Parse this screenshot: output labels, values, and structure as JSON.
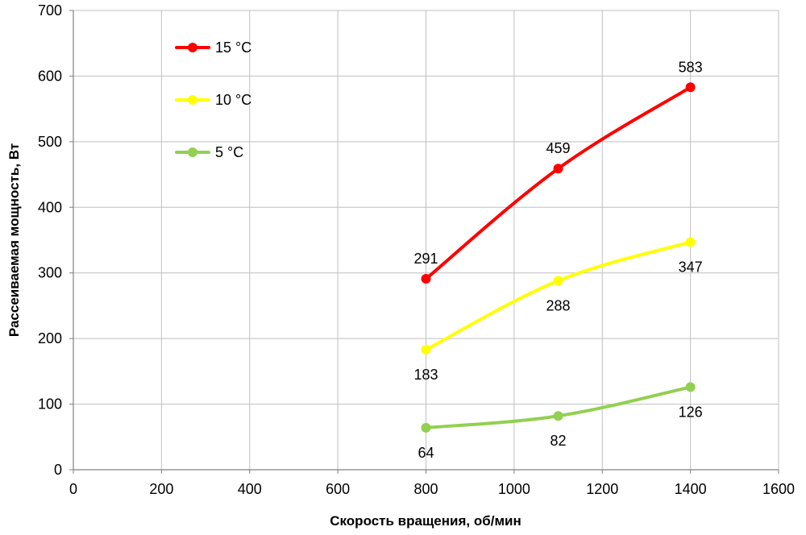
{
  "chart_data": {
    "type": "line",
    "xlabel": "Скорость вращения, об/мин",
    "ylabel": "Рассеиваемая мощность, Вт",
    "xlim": [
      0,
      1600
    ],
    "ylim": [
      0,
      700
    ],
    "xticks": [
      0,
      200,
      400,
      600,
      800,
      1000,
      1200,
      1400,
      1600
    ],
    "yticks": [
      0,
      100,
      200,
      300,
      400,
      500,
      600,
      700
    ],
    "grid": true,
    "legend_position": "top-left",
    "series": [
      {
        "name": "15 °C",
        "color": "#ff0000",
        "x": [
          800,
          1100,
          1400
        ],
        "y": [
          291,
          459,
          583
        ],
        "labels": [
          "291",
          "459",
          "583"
        ],
        "label_position": "above"
      },
      {
        "name": "10 °C",
        "color": "#ffff00",
        "x": [
          800,
          1100,
          1400
        ],
        "y": [
          183,
          288,
          347
        ],
        "labels": [
          "183",
          "288",
          "347"
        ],
        "label_position": "below"
      },
      {
        "name": "5 °C",
        "color": "#92d050",
        "x": [
          800,
          1100,
          1400
        ],
        "y": [
          64,
          82,
          126
        ],
        "labels": [
          "64",
          "82",
          "126"
        ],
        "label_position": "below"
      }
    ]
  }
}
